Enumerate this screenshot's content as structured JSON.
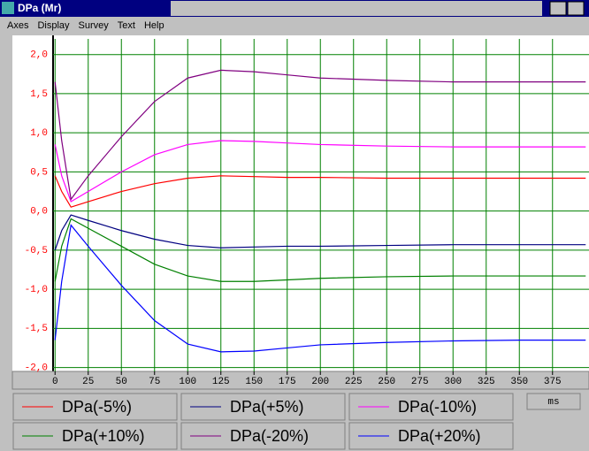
{
  "window_title": "DPa (Mr)",
  "menu": [
    "Axes",
    "Display",
    "Survey",
    "Text",
    "Help"
  ],
  "chart_data": {
    "type": "line",
    "x_label": "ms",
    "x": [
      0,
      5,
      12,
      25,
      50,
      75,
      100,
      125,
      150,
      175,
      200,
      250,
      300,
      350,
      400
    ],
    "series": [
      {
        "name": "DPa(-5%)",
        "color": "#ff0000",
        "values": [
          0.45,
          0.25,
          0.05,
          0.12,
          0.25,
          0.35,
          0.42,
          0.45,
          0.44,
          0.43,
          0.43,
          0.42,
          0.42,
          0.42,
          0.42
        ]
      },
      {
        "name": "DPa(+5%)",
        "color": "#000080",
        "values": [
          -0.5,
          -0.25,
          -0.05,
          -0.12,
          -0.25,
          -0.36,
          -0.44,
          -0.47,
          -0.46,
          -0.45,
          -0.45,
          -0.44,
          -0.43,
          -0.43,
          -0.43
        ]
      },
      {
        "name": "DPa(-10%)",
        "color": "#ff00ff",
        "values": [
          0.85,
          0.45,
          0.12,
          0.25,
          0.5,
          0.72,
          0.85,
          0.9,
          0.89,
          0.87,
          0.85,
          0.83,
          0.82,
          0.82,
          0.82
        ]
      },
      {
        "name": "DPa(+10%)",
        "color": "#008000",
        "values": [
          -0.9,
          -0.45,
          -0.1,
          -0.22,
          -0.45,
          -0.68,
          -0.83,
          -0.9,
          -0.9,
          -0.88,
          -0.86,
          -0.84,
          -0.83,
          -0.83,
          -0.83
        ]
      },
      {
        "name": "DPa(-20%)",
        "color": "#800080",
        "values": [
          1.65,
          0.9,
          0.15,
          0.45,
          0.95,
          1.4,
          1.7,
          1.8,
          1.78,
          1.74,
          1.7,
          1.67,
          1.65,
          1.65,
          1.65
        ]
      },
      {
        "name": "DPa(+20%)",
        "color": "#0000ff",
        "values": [
          -1.65,
          -0.9,
          -0.18,
          -0.45,
          -0.95,
          -1.4,
          -1.7,
          -1.8,
          -1.79,
          -1.75,
          -1.71,
          -1.68,
          -1.66,
          -1.65,
          -1.65
        ]
      }
    ],
    "xlim": [
      -1.5,
      402.5
    ],
    "xticks": [
      0,
      25,
      50,
      75,
      100,
      125,
      150,
      175,
      200,
      225,
      250,
      275,
      300,
      325,
      350,
      375
    ],
    "ylim": [
      -2.05,
      2.2
    ],
    "yticks": [
      {
        "value": 2,
        "label": "2,0"
      },
      {
        "value": 1.5,
        "label": "1,5"
      },
      {
        "value": 1,
        "label": "1,0"
      },
      {
        "value": 0.5,
        "label": "0,5"
      },
      {
        "value": 0,
        "label": "0,0"
      },
      {
        "value": -0.5,
        "label": "-0,5"
      },
      {
        "value": -1,
        "label": "-1,0"
      },
      {
        "value": -1.5,
        "label": "-1,5"
      },
      {
        "value": -2,
        "label": "-2,0"
      }
    ],
    "grid": true,
    "grid_color": "#008000",
    "tick_label_color": "#ff0000"
  }
}
